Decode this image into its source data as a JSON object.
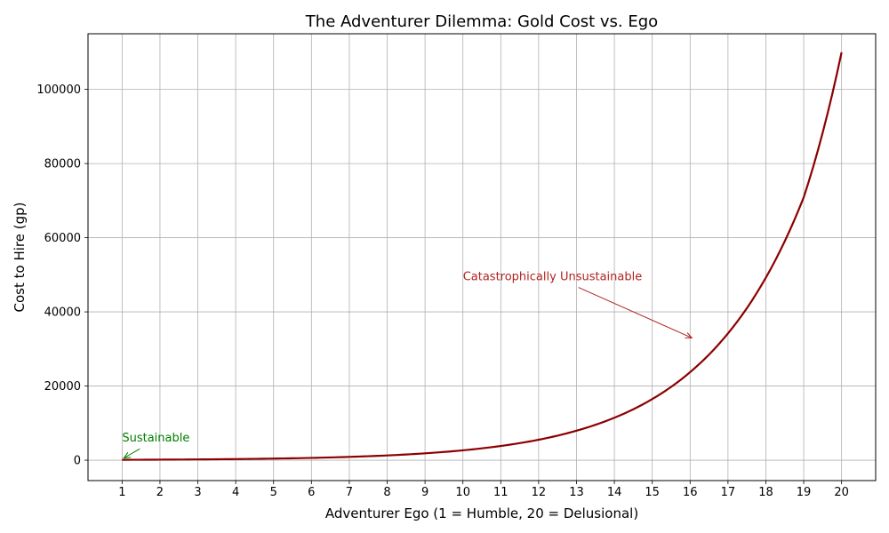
{
  "chart_data": {
    "type": "line",
    "title": "The Adventurer Dilemma: Gold Cost vs. Ego",
    "xlabel": "Adventurer Ego (1 = Humble, 20 = Delusional)",
    "ylabel": "Cost to Hire (gp)",
    "xlim": [
      0.1,
      20.9
    ],
    "ylim": [
      -5500,
      115000
    ],
    "xticks": [
      1,
      2,
      3,
      4,
      5,
      6,
      7,
      8,
      9,
      10,
      11,
      12,
      13,
      14,
      15,
      16,
      17,
      18,
      19,
      20
    ],
    "yticks": [
      0,
      20000,
      40000,
      60000,
      80000,
      100000
    ],
    "grid": true,
    "series": [
      {
        "color": "#8b0000",
        "x": [
          1,
          2,
          3,
          4,
          5,
          6,
          7,
          8,
          9,
          10,
          11,
          12,
          13,
          14,
          15,
          16,
          17,
          18,
          19,
          20
        ],
        "values": [
          100,
          144,
          208,
          299,
          430,
          619,
          892,
          1284,
          1849,
          2662,
          3834,
          5520,
          7949,
          11447,
          16484,
          23738,
          34183,
          49223,
          70882,
          110000
        ]
      }
    ],
    "annotations": [
      {
        "text": "Sustainable",
        "color": "#008000",
        "x": 1,
        "y": 100,
        "text_x": 1,
        "text_y": 5000
      },
      {
        "text": "Catastrophically Unsustainable",
        "color": "#b22222",
        "x": 16,
        "y": 32500,
        "text_x": 10,
        "text_y": 48500
      }
    ]
  }
}
